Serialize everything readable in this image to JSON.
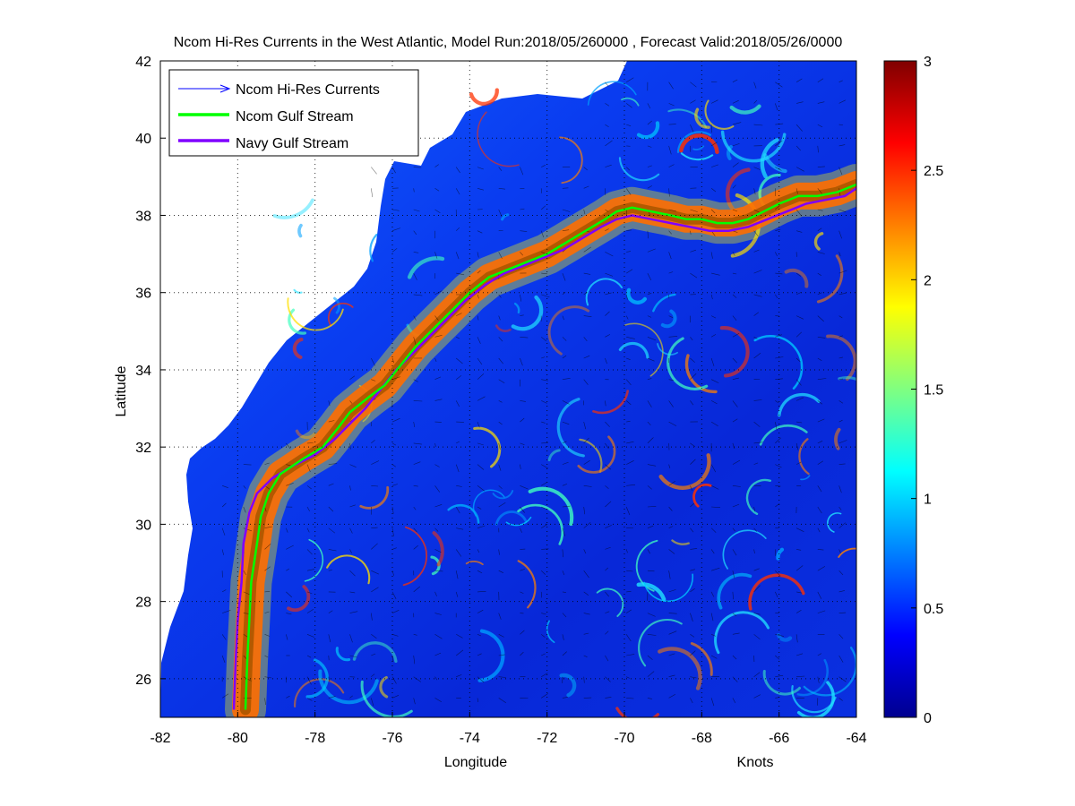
{
  "title": "Ncom Hi-Res Currents in the West Atlantic, Model Run:2018/05/260000 , Forecast Valid:2018/05/26/0000",
  "chart_data": {
    "type": "heatmap",
    "xlabel": "Longitude",
    "ylabel": "Latitude",
    "colorbar_label": "Knots",
    "xlim": [
      -82,
      -64
    ],
    "ylim": [
      25,
      42
    ],
    "x_ticks": [
      "-82",
      "-80",
      "-78",
      "-76",
      "-74",
      "-72",
      "-70",
      "-68",
      "-66",
      "-64"
    ],
    "y_ticks": [
      "26",
      "28",
      "30",
      "32",
      "34",
      "36",
      "38",
      "40",
      "42"
    ],
    "colorbar_range": [
      0,
      3
    ],
    "colorbar_ticks": [
      "0",
      "0.5",
      "1",
      "1.5",
      "2",
      "2.5",
      "3"
    ],
    "colormap": "jet",
    "grid": "dotted",
    "legend_position": "top-left",
    "legend": [
      {
        "name": "Ncom Hi-Res Currents",
        "color": "#0000ff",
        "style": "arrow"
      },
      {
        "name": "Ncom Gulf Stream",
        "color": "#00ff00",
        "style": "line"
      },
      {
        "name": "Navy Gulf Stream",
        "color": "#8000ff",
        "style": "line"
      }
    ],
    "series": [
      {
        "name": "Ncom Gulf Stream",
        "lon": [
          -79.8,
          -79.75,
          -79.7,
          -79.65,
          -79.5,
          -79.4,
          -79.2,
          -78.9,
          -78.3,
          -77.8,
          -77.4,
          -77.1,
          -76.6,
          -76.2,
          -75.8,
          -75.4,
          -75.0,
          -74.5,
          -74.0,
          -73.5,
          -73.0,
          -72.5,
          -72.0,
          -71.5,
          -71.0,
          -70.5,
          -70.2,
          -69.8,
          -69.3,
          -68.8,
          -68.4,
          -68.0,
          -67.6,
          -67.2,
          -66.8,
          -66.4,
          -66.0,
          -65.5,
          -65.0,
          -64.5,
          -64.0
        ],
        "lat": [
          25.2,
          26.5,
          27.5,
          28.5,
          29.5,
          30.2,
          30.8,
          31.3,
          31.7,
          32.0,
          32.5,
          32.9,
          33.3,
          33.6,
          34.1,
          34.6,
          35.0,
          35.5,
          36.0,
          36.4,
          36.6,
          36.8,
          37.0,
          37.3,
          37.6,
          37.9,
          38.1,
          38.2,
          38.1,
          38.0,
          37.9,
          37.9,
          37.8,
          37.8,
          37.9,
          38.1,
          38.3,
          38.5,
          38.5,
          38.6,
          38.8
        ]
      },
      {
        "name": "Navy Gulf Stream",
        "lon": [
          -80.1,
          -80.05,
          -80.0,
          -79.9,
          -79.85,
          -79.7,
          -79.5,
          -79.1,
          -78.6,
          -78.0,
          -77.5,
          -77.1,
          -76.7,
          -76.3,
          -75.9,
          -75.5,
          -75.1,
          -74.6,
          -74.1,
          -73.6,
          -73.1,
          -72.6,
          -72.1,
          -71.6,
          -71.1,
          -70.6,
          -70.2,
          -69.8,
          -69.3,
          -68.8,
          -68.3,
          -67.8,
          -67.3,
          -66.8,
          -66.3,
          -65.8,
          -65.3,
          -64.8,
          -64.3,
          -64.0
        ],
        "lat": [
          25.2,
          26.5,
          27.5,
          28.5,
          29.5,
          30.3,
          30.8,
          31.2,
          31.5,
          31.8,
          32.2,
          32.6,
          33.0,
          33.5,
          34.0,
          34.4,
          34.8,
          35.3,
          35.8,
          36.2,
          36.5,
          36.7,
          36.9,
          37.1,
          37.4,
          37.7,
          37.9,
          38.0,
          37.9,
          37.8,
          37.7,
          37.6,
          37.6,
          37.7,
          37.9,
          38.1,
          38.3,
          38.4,
          38.5,
          38.7
        ]
      }
    ]
  }
}
